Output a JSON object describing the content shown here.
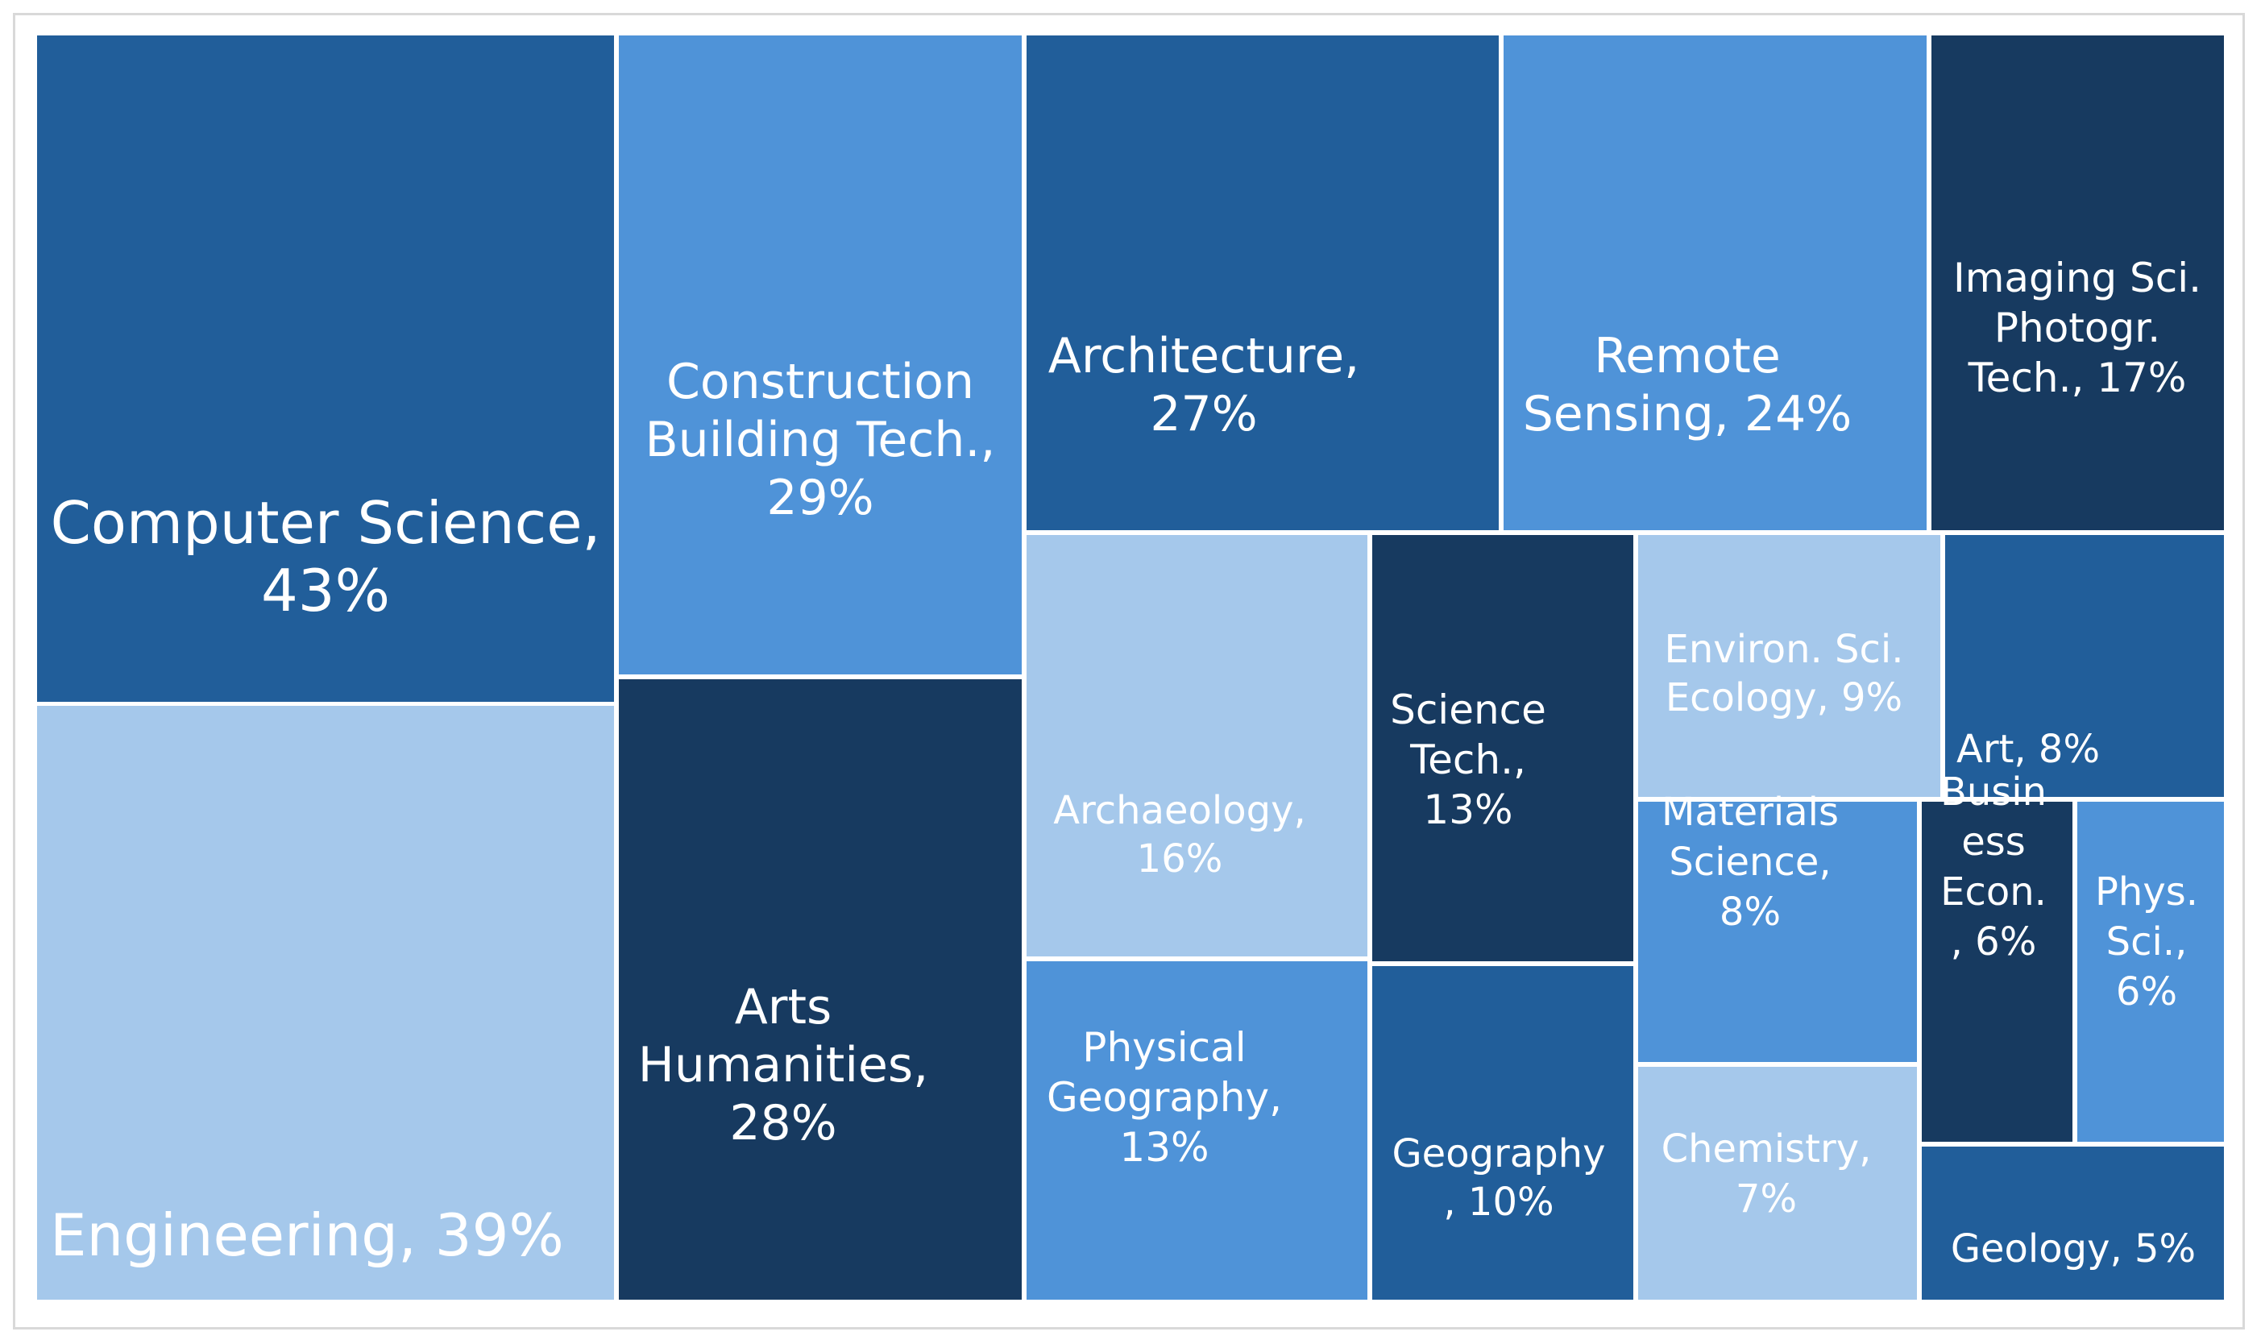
{
  "chart_data": {
    "type": "treemap",
    "title": "",
    "colors": {
      "navy": "#173a60",
      "dark": "#215e9a",
      "mid": "#4f93d8",
      "light": "#a5c8eb",
      "label": "#ffffff"
    },
    "items": [
      {
        "name": "Computer Science",
        "value": 43,
        "label_lines": [
          "Computer Science,",
          "43%"
        ],
        "color": "dark"
      },
      {
        "name": "Engineering",
        "value": 39,
        "label_lines": [
          "Engineering, 39%"
        ],
        "color": "light"
      },
      {
        "name": "Construction Building Tech.",
        "value": 29,
        "label_lines": [
          "Construction",
          "Building Tech.,",
          "29%"
        ],
        "color": "mid"
      },
      {
        "name": "Arts Humanities",
        "value": 28,
        "label_lines": [
          "Arts",
          "Humanities,",
          "28%"
        ],
        "color": "navy"
      },
      {
        "name": "Architecture",
        "value": 27,
        "label_lines": [
          "Architecture,",
          "27%"
        ],
        "color": "dark"
      },
      {
        "name": "Remote Sensing",
        "value": 24,
        "label_lines": [
          "Remote",
          "Sensing, 24%"
        ],
        "color": "mid"
      },
      {
        "name": "Imaging Sci. Photogr. Tech.",
        "value": 17,
        "label_lines": [
          "Imaging Sci.",
          "Photogr.",
          "Tech., 17%"
        ],
        "color": "navy"
      },
      {
        "name": "Archaeology",
        "value": 16,
        "label_lines": [
          "Archaeology,",
          "16%"
        ],
        "color": "light"
      },
      {
        "name": "Physical Geography",
        "value": 13,
        "label_lines": [
          "Physical",
          "Geography,",
          "13%"
        ],
        "color": "mid"
      },
      {
        "name": "Science Tech.",
        "value": 13,
        "label_lines": [
          "Science",
          "Tech.,",
          "13%"
        ],
        "color": "navy"
      },
      {
        "name": "Geography",
        "value": 10,
        "label_lines": [
          "Geography",
          ", 10%"
        ],
        "color": "dark"
      },
      {
        "name": "Environ. Sci. Ecology",
        "value": 9,
        "label_lines": [
          "Environ. Sci.",
          "Ecology, 9%"
        ],
        "color": "light"
      },
      {
        "name": "Art",
        "value": 8,
        "label_lines": [
          "Art, 8%"
        ],
        "color": "dark"
      },
      {
        "name": "Materials Science",
        "value": 8,
        "label_lines": [
          "Materials",
          "Science,",
          "8%"
        ],
        "color": "mid"
      },
      {
        "name": "Chemistry",
        "value": 7,
        "label_lines": [
          "Chemistry,",
          "7%"
        ],
        "color": "light"
      },
      {
        "name": "Business Econ.",
        "value": 6,
        "label_lines": [
          "Busin",
          "ess",
          "Econ.",
          ", 6%"
        ],
        "color": "navy"
      },
      {
        "name": "Phys. Sci.",
        "value": 6,
        "label_lines": [
          "Phys.",
          "Sci.,",
          "6%"
        ],
        "color": "mid"
      },
      {
        "name": "Geology",
        "value": 5,
        "label_lines": [
          "Geology, 5%"
        ],
        "color": "dark"
      }
    ]
  }
}
